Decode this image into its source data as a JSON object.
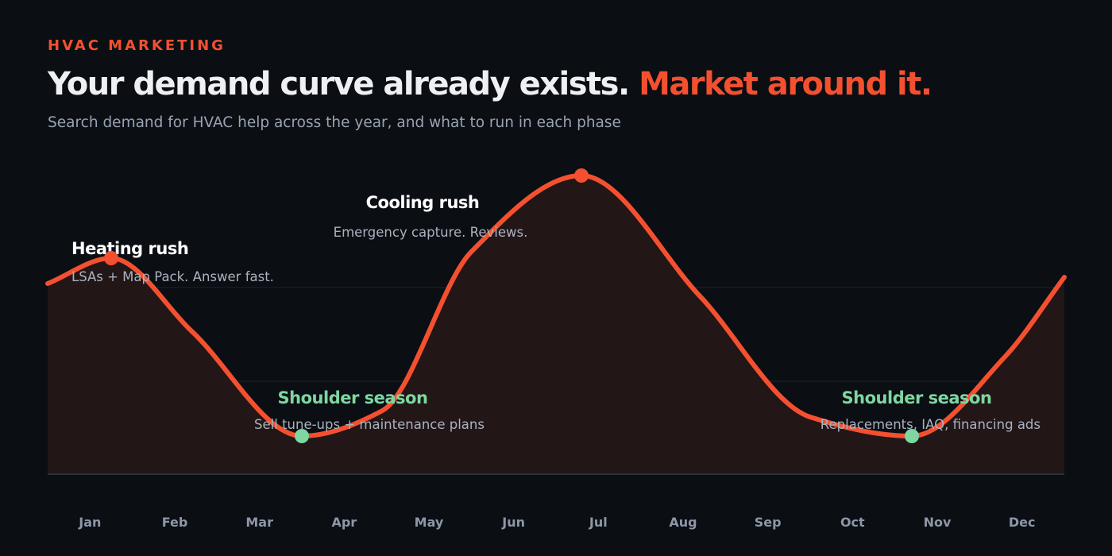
{
  "header": {
    "eyebrow": "HVAC MARKETING",
    "headline_main": "Your demand curve already exists.",
    "headline_accent": "Market around it.",
    "subtitle": "Search demand for HVAC help across the year, and what to run in each phase"
  },
  "colors": {
    "background": "#0b0e13",
    "accent": "#f4502f",
    "shoulder": "#7ed6a0",
    "area_fill": "#221617",
    "gridline": "#1f2330",
    "text_primary": "#eef0f4",
    "text_muted": "#9aa3b2"
  },
  "annotations": [
    {
      "title": "Heating rush",
      "body": "LSAs + Map Pack. Answer fast.",
      "marker_color": "#f4502f"
    },
    {
      "title": "Shoulder season",
      "body": "Sell tune-ups + maintenance plans",
      "marker_color": "#7ed6a0"
    },
    {
      "title": "Cooling rush",
      "body": "Emergency capture. Reviews.",
      "marker_color": "#f4502f"
    },
    {
      "title": "Shoulder season",
      "body": "Replacements, IAQ, financing ads",
      "marker_color": "#7ed6a0"
    }
  ],
  "chart_data": {
    "type": "area",
    "title": "",
    "xlabel": "",
    "ylabel": "",
    "categories": [
      "Jan",
      "Feb",
      "Mar",
      "Apr",
      "May",
      "Jun",
      "Jul",
      "Aug",
      "Sep",
      "Oct",
      "Nov",
      "Dec"
    ],
    "x_range": [
      0.5,
      12.5
    ],
    "ylim": [
      0,
      100
    ],
    "grid": true,
    "series": [
      {
        "x": [
          0.5,
          1.25,
          2.2,
          3.5,
          4.45,
          5.5,
          6.8,
          8.2,
          9.5,
          10.7,
          11.8,
          12.5
        ],
        "y": [
          60,
          68,
          45,
          12,
          20,
          70,
          94,
          56,
          18,
          12,
          37,
          62
        ]
      }
    ],
    "markers": [
      {
        "x": 1.25,
        "y": 68,
        "label": "Heating rush"
      },
      {
        "x": 3.5,
        "y": 12,
        "label": "Shoulder season"
      },
      {
        "x": 6.8,
        "y": 94,
        "label": "Cooling rush"
      },
      {
        "x": 10.7,
        "y": 12,
        "label": "Shoulder season"
      }
    ]
  }
}
